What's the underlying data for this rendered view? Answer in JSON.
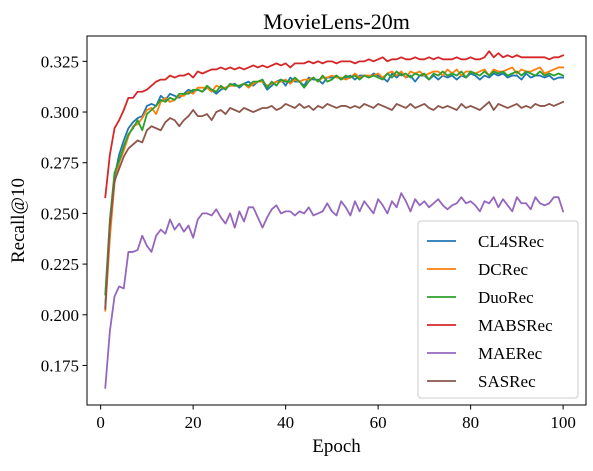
{
  "chart_data": {
    "type": "line",
    "title": "MovieLens-20m",
    "xlabel": "Epoch",
    "ylabel": "Recall@10",
    "xlim": [
      -2.95,
      104.95
    ],
    "ylim": [
      0.1555,
      0.3375
    ],
    "xticks": [
      0,
      20,
      40,
      60,
      80,
      100
    ],
    "xtick_labels": [
      "0",
      "20",
      "40",
      "60",
      "80",
      "100"
    ],
    "yticks": [
      0.175,
      0.2,
      0.225,
      0.25,
      0.275,
      0.3,
      0.325
    ],
    "ytick_labels": [
      "0.175",
      "0.200",
      "0.225",
      "0.250",
      "0.275",
      "0.300",
      "0.325"
    ],
    "grid": false,
    "legend_position": "lower right",
    "x": [
      1,
      2,
      3,
      4,
      5,
      6,
      7,
      8,
      9,
      10,
      11,
      12,
      13,
      14,
      15,
      16,
      17,
      18,
      19,
      20,
      21,
      22,
      23,
      24,
      25,
      26,
      27,
      28,
      29,
      30,
      31,
      32,
      33,
      34,
      35,
      36,
      37,
      38,
      39,
      40,
      41,
      42,
      43,
      44,
      45,
      46,
      47,
      48,
      49,
      50,
      51,
      52,
      53,
      54,
      55,
      56,
      57,
      58,
      59,
      60,
      61,
      62,
      63,
      64,
      65,
      66,
      67,
      68,
      69,
      70,
      71,
      72,
      73,
      74,
      75,
      76,
      77,
      78,
      79,
      80,
      81,
      82,
      83,
      84,
      85,
      86,
      87,
      88,
      89,
      90,
      91,
      92,
      93,
      94,
      95,
      96,
      97,
      98,
      99,
      100
    ],
    "series": [
      {
        "name": "CL4SRec",
        "color": "#1f77b4",
        "values": [
          0.204,
          0.245,
          0.268,
          0.279,
          0.286,
          0.292,
          0.295,
          0.297,
          0.298,
          0.303,
          0.304,
          0.303,
          0.308,
          0.306,
          0.309,
          0.308,
          0.307,
          0.309,
          0.311,
          0.31,
          0.311,
          0.31,
          0.312,
          0.311,
          0.309,
          0.311,
          0.312,
          0.313,
          0.314,
          0.312,
          0.314,
          0.315,
          0.313,
          0.315,
          0.315,
          0.311,
          0.313,
          0.315,
          0.316,
          0.313,
          0.317,
          0.315,
          0.315,
          0.313,
          0.317,
          0.316,
          0.316,
          0.314,
          0.317,
          0.317,
          0.318,
          0.316,
          0.317,
          0.318,
          0.316,
          0.318,
          0.318,
          0.317,
          0.319,
          0.318,
          0.317,
          0.315,
          0.319,
          0.317,
          0.319,
          0.317,
          0.318,
          0.315,
          0.318,
          0.318,
          0.316,
          0.318,
          0.316,
          0.318,
          0.317,
          0.318,
          0.316,
          0.318,
          0.317,
          0.319,
          0.318,
          0.316,
          0.318,
          0.317,
          0.319,
          0.318,
          0.319,
          0.317,
          0.318,
          0.318,
          0.316,
          0.319,
          0.317,
          0.318,
          0.318,
          0.317,
          0.318,
          0.316,
          0.317,
          0.317
        ]
      },
      {
        "name": "DCRec",
        "color": "#ff7f0e",
        "values": [
          0.202,
          0.238,
          0.265,
          0.275,
          0.281,
          0.288,
          0.293,
          0.294,
          0.297,
          0.301,
          0.302,
          0.299,
          0.305,
          0.307,
          0.305,
          0.306,
          0.308,
          0.308,
          0.31,
          0.309,
          0.312,
          0.312,
          0.312,
          0.31,
          0.313,
          0.312,
          0.312,
          0.313,
          0.313,
          0.313,
          0.314,
          0.312,
          0.314,
          0.315,
          0.315,
          0.313,
          0.314,
          0.315,
          0.315,
          0.316,
          0.314,
          0.316,
          0.315,
          0.316,
          0.316,
          0.317,
          0.315,
          0.317,
          0.317,
          0.318,
          0.317,
          0.317,
          0.316,
          0.317,
          0.319,
          0.317,
          0.318,
          0.318,
          0.318,
          0.319,
          0.317,
          0.319,
          0.32,
          0.318,
          0.32,
          0.317,
          0.32,
          0.319,
          0.32,
          0.318,
          0.319,
          0.32,
          0.32,
          0.318,
          0.321,
          0.319,
          0.321,
          0.318,
          0.32,
          0.32,
          0.319,
          0.32,
          0.321,
          0.318,
          0.321,
          0.32,
          0.32,
          0.321,
          0.322,
          0.319,
          0.321,
          0.32,
          0.32,
          0.321,
          0.322,
          0.319,
          0.32,
          0.321,
          0.322,
          0.322
        ]
      },
      {
        "name": "DuoRec",
        "color": "#2ca02c",
        "values": [
          0.21,
          0.247,
          0.27,
          0.276,
          0.283,
          0.289,
          0.292,
          0.296,
          0.291,
          0.299,
          0.301,
          0.303,
          0.306,
          0.305,
          0.307,
          0.306,
          0.309,
          0.309,
          0.309,
          0.311,
          0.311,
          0.31,
          0.313,
          0.311,
          0.31,
          0.313,
          0.311,
          0.314,
          0.313,
          0.313,
          0.314,
          0.313,
          0.315,
          0.315,
          0.316,
          0.312,
          0.315,
          0.313,
          0.316,
          0.315,
          0.315,
          0.317,
          0.315,
          0.312,
          0.315,
          0.317,
          0.315,
          0.318,
          0.315,
          0.316,
          0.318,
          0.316,
          0.318,
          0.317,
          0.318,
          0.316,
          0.318,
          0.317,
          0.318,
          0.317,
          0.316,
          0.319,
          0.317,
          0.32,
          0.318,
          0.319,
          0.317,
          0.319,
          0.318,
          0.319,
          0.316,
          0.319,
          0.318,
          0.32,
          0.318,
          0.319,
          0.318,
          0.32,
          0.317,
          0.32,
          0.319,
          0.318,
          0.32,
          0.318,
          0.32,
          0.319,
          0.32,
          0.318,
          0.319,
          0.32,
          0.318,
          0.32,
          0.319,
          0.318,
          0.32,
          0.318,
          0.319,
          0.318,
          0.319,
          0.318
        ]
      },
      {
        "name": "MABSRec",
        "color": "#d62728",
        "values": [
          0.258,
          0.279,
          0.292,
          0.296,
          0.301,
          0.307,
          0.307,
          0.31,
          0.31,
          0.311,
          0.313,
          0.315,
          0.316,
          0.316,
          0.318,
          0.317,
          0.318,
          0.318,
          0.319,
          0.317,
          0.32,
          0.319,
          0.32,
          0.321,
          0.321,
          0.322,
          0.321,
          0.322,
          0.321,
          0.322,
          0.321,
          0.322,
          0.323,
          0.322,
          0.323,
          0.322,
          0.323,
          0.324,
          0.323,
          0.324,
          0.322,
          0.324,
          0.324,
          0.324,
          0.325,
          0.324,
          0.325,
          0.324,
          0.325,
          0.325,
          0.324,
          0.325,
          0.325,
          0.325,
          0.324,
          0.325,
          0.325,
          0.326,
          0.325,
          0.326,
          0.327,
          0.325,
          0.326,
          0.326,
          0.327,
          0.326,
          0.326,
          0.327,
          0.326,
          0.326,
          0.327,
          0.326,
          0.327,
          0.326,
          0.326,
          0.326,
          0.327,
          0.326,
          0.326,
          0.327,
          0.326,
          0.326,
          0.327,
          0.33,
          0.327,
          0.329,
          0.327,
          0.328,
          0.327,
          0.328,
          0.327,
          0.327,
          0.327,
          0.327,
          0.327,
          0.327,
          0.326,
          0.327,
          0.327,
          0.328
        ]
      },
      {
        "name": "MAERec",
        "color": "#9467bd",
        "values": [
          0.164,
          0.192,
          0.209,
          0.214,
          0.213,
          0.231,
          0.231,
          0.232,
          0.239,
          0.234,
          0.231,
          0.239,
          0.242,
          0.24,
          0.247,
          0.242,
          0.245,
          0.241,
          0.244,
          0.238,
          0.247,
          0.25,
          0.25,
          0.249,
          0.252,
          0.248,
          0.245,
          0.25,
          0.243,
          0.251,
          0.246,
          0.253,
          0.253,
          0.248,
          0.243,
          0.248,
          0.252,
          0.254,
          0.25,
          0.251,
          0.251,
          0.249,
          0.251,
          0.25,
          0.253,
          0.249,
          0.25,
          0.251,
          0.255,
          0.251,
          0.249,
          0.256,
          0.253,
          0.249,
          0.256,
          0.251,
          0.256,
          0.253,
          0.25,
          0.257,
          0.254,
          0.25,
          0.256,
          0.253,
          0.26,
          0.256,
          0.251,
          0.257,
          0.254,
          0.256,
          0.253,
          0.255,
          0.257,
          0.254,
          0.252,
          0.254,
          0.255,
          0.258,
          0.255,
          0.256,
          0.254,
          0.251,
          0.256,
          0.255,
          0.258,
          0.253,
          0.257,
          0.254,
          0.251,
          0.258,
          0.255,
          0.255,
          0.252,
          0.258,
          0.255,
          0.254,
          0.255,
          0.258,
          0.258,
          0.251
        ]
      },
      {
        "name": "SASRec",
        "color": "#8c564b",
        "values": [
          0.203,
          0.244,
          0.266,
          0.272,
          0.278,
          0.282,
          0.284,
          0.286,
          0.285,
          0.291,
          0.293,
          0.292,
          0.291,
          0.295,
          0.297,
          0.296,
          0.293,
          0.296,
          0.298,
          0.301,
          0.298,
          0.298,
          0.299,
          0.296,
          0.3,
          0.301,
          0.299,
          0.302,
          0.301,
          0.3,
          0.302,
          0.301,
          0.3,
          0.301,
          0.302,
          0.302,
          0.303,
          0.301,
          0.302,
          0.304,
          0.303,
          0.302,
          0.304,
          0.302,
          0.303,
          0.301,
          0.303,
          0.302,
          0.304,
          0.303,
          0.302,
          0.303,
          0.303,
          0.302,
          0.303,
          0.302,
          0.304,
          0.303,
          0.302,
          0.304,
          0.303,
          0.302,
          0.301,
          0.304,
          0.303,
          0.302,
          0.304,
          0.302,
          0.303,
          0.304,
          0.302,
          0.301,
          0.303,
          0.302,
          0.303,
          0.302,
          0.301,
          0.304,
          0.302,
          0.303,
          0.302,
          0.301,
          0.303,
          0.305,
          0.301,
          0.304,
          0.303,
          0.302,
          0.303,
          0.304,
          0.302,
          0.303,
          0.302,
          0.304,
          0.303,
          0.303,
          0.304,
          0.303,
          0.304,
          0.305
        ]
      }
    ]
  }
}
